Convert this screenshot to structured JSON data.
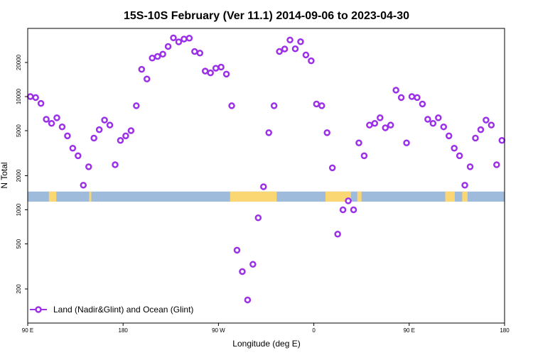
{
  "chart_data": {
    "type": "scatter",
    "title": "15S-10S February (Ver 11.1)   2014-09-06 to 2023-04-30",
    "xlabel": "Longitude (deg E)",
    "ylabel": "N Total",
    "x_axis": {
      "range": [
        90,
        540
      ],
      "tick_values": [
        90,
        180,
        270,
        360,
        450,
        540
      ],
      "tick_labels": [
        "90 E",
        "180",
        "90 W",
        "0",
        "90 E",
        "180"
      ]
    },
    "y_axis": {
      "scale": "log",
      "range": [
        100,
        40000
      ],
      "tick_values": [
        200,
        500,
        1000,
        2000,
        5000,
        10000,
        20000
      ],
      "tick_labels": [
        "200",
        "500",
        "1000",
        "2000",
        "5000",
        "10000",
        "20000"
      ]
    },
    "grid": false,
    "legend": {
      "placement": "bottom-left",
      "entries": [
        "Land (Nadir&Glint) and Ocean (Glint)"
      ]
    },
    "colors": {
      "series": "#9b30e8",
      "ocean": "#9fbbdc",
      "land": "#fbd774"
    },
    "series": [
      {
        "name": "Land (Nadir&Glint) and Ocean (Glint)",
        "x": [
          92.5,
          97.5,
          102.5,
          107.5,
          112.5,
          117.5,
          122.5,
          127.5,
          132.5,
          137.5,
          142.5,
          147.5,
          152.5,
          157.5,
          162.5,
          167.5,
          172.5,
          177.5,
          182.5,
          187.5,
          192.5,
          197.5,
          202.5,
          207.5,
          212.5,
          217.5,
          222.5,
          227.5,
          232.5,
          237.5,
          242.5,
          247.5,
          252.5,
          257.5,
          262.5,
          267.5,
          272.5,
          277.5,
          282.5,
          287.5,
          292.5,
          297.5,
          302.5,
          307.5,
          312.5,
          317.5,
          322.5,
          327.5,
          332.5,
          337.5,
          342.5,
          347.5,
          352.5,
          357.5,
          362.5,
          367.5,
          372.5,
          377.5,
          382.5,
          387.5,
          392.5,
          397.5,
          402.5,
          407.5,
          412.5,
          417.5,
          422.5,
          427.5,
          432.5,
          437.5,
          442.5,
          447.5,
          452.5,
          457.5,
          462.5,
          467.5,
          472.5,
          477.5,
          482.5,
          487.5,
          492.5,
          497.5,
          502.5,
          507.5,
          512.5,
          517.5,
          522.5,
          527.5,
          532.5,
          537.5
        ],
        "y": [
          10000,
          9800,
          8700,
          6300,
          5800,
          6500,
          5400,
          4500,
          3500,
          3000,
          1650,
          2400,
          4300,
          5100,
          6200,
          5600,
          2500,
          4100,
          4500,
          5000,
          8300,
          17400,
          14300,
          21900,
          22600,
          23700,
          27700,
          33000,
          30400,
          32200,
          32800,
          25000,
          24200,
          16800,
          16200,
          17800,
          18200,
          15800,
          8300,
          440,
          285,
          160,
          330,
          850,
          1600,
          4800,
          8300,
          25000,
          26300,
          31600,
          26400,
          30500,
          23300,
          20700,
          8600,
          8300,
          4800,
          2350,
          610,
          1000,
          1200,
          1000,
          3900,
          3000,
          5600,
          5800,
          6500,
          5300,
          5600,
          11400,
          9800,
          3900,
          10000,
          9800,
          8600,
          6300,
          5800,
          6500,
          5400,
          4500,
          3500,
          3000,
          1650,
          2400,
          4300,
          5100,
          6200,
          5600,
          2500,
          4100
        ]
      }
    ],
    "land_bands": [
      {
        "lon": [
          110,
          117
        ]
      },
      {
        "lon": [
          148,
          150
        ]
      },
      {
        "lon": [
          281,
          325
        ]
      },
      {
        "lon": [
          371,
          395
        ]
      },
      {
        "lon": [
          401,
          405
        ]
      },
      {
        "lon": [
          484,
          493
        ]
      },
      {
        "lon": [
          500,
          505
        ]
      }
    ]
  }
}
